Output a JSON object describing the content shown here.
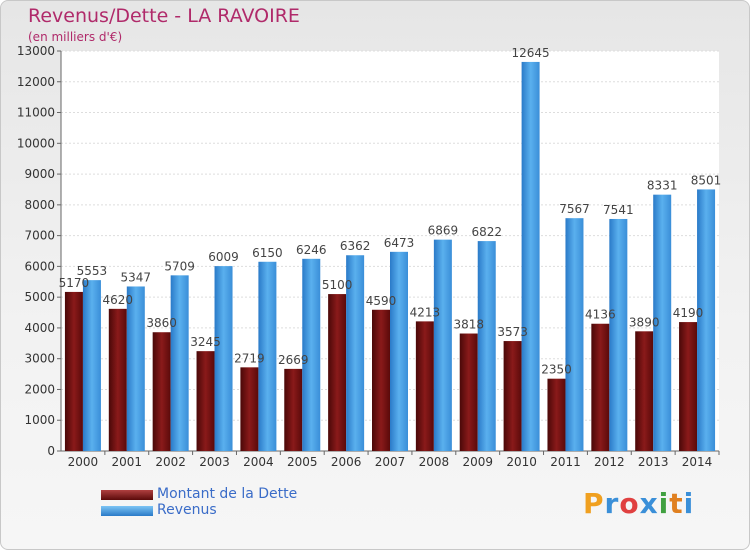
{
  "chart_data": {
    "type": "bar",
    "title": "Revenus/Dette - LA RAVOIRE",
    "subtitle": "(en milliers d'€)",
    "categories": [
      "2000",
      "2001",
      "2002",
      "2003",
      "2004",
      "2005",
      "2006",
      "2007",
      "2008",
      "2009",
      "2010",
      "2011",
      "2012",
      "2013",
      "2014"
    ],
    "series": [
      {
        "name": "Montant de la Dette",
        "color": "#7a1515",
        "values": [
          5170,
          4620,
          3860,
          3245,
          2719,
          2669,
          5100,
          4590,
          4213,
          3818,
          3573,
          2350,
          4136,
          3890,
          4190
        ],
        "labels": [
          "5170",
          "4620",
          "3860",
          "3245",
          "2719",
          "2669",
          "5100",
          "4590",
          "4213",
          "3818",
          "3573",
          "2350",
          "4136",
          "3890",
          "4190"
        ]
      },
      {
        "name": "Revenus",
        "color": "#4a9fe0",
        "values": [
          5553,
          5347,
          5709,
          6009,
          6150,
          6246,
          6362,
          6473,
          6869,
          6822,
          12645,
          7567,
          7541,
          8331,
          8501
        ],
        "labels": [
          "5553",
          "5347",
          "5709",
          "6009",
          "6150",
          "6246",
          "6362",
          "6473",
          "6869",
          "6822",
          "12645",
          "7567",
          "7541",
          "8331",
          "8501"
        ]
      }
    ],
    "ylim": [
      0,
      13000
    ],
    "yticks": [
      "0",
      "1000",
      "2000",
      "3000",
      "4000",
      "5000",
      "6000",
      "7000",
      "8000",
      "9000",
      "10000",
      "11000",
      "12000",
      "13000"
    ],
    "grid": true,
    "legend_position": "bottom-left"
  },
  "logo": {
    "letters": [
      "P",
      "r",
      "o",
      "x",
      "i",
      "t",
      "i"
    ],
    "colors": [
      "#f0a020",
      "#3a8fd8",
      "#e04040",
      "#3a8fd8",
      "#40a040",
      "#e08020",
      "#3a8fd8"
    ]
  }
}
